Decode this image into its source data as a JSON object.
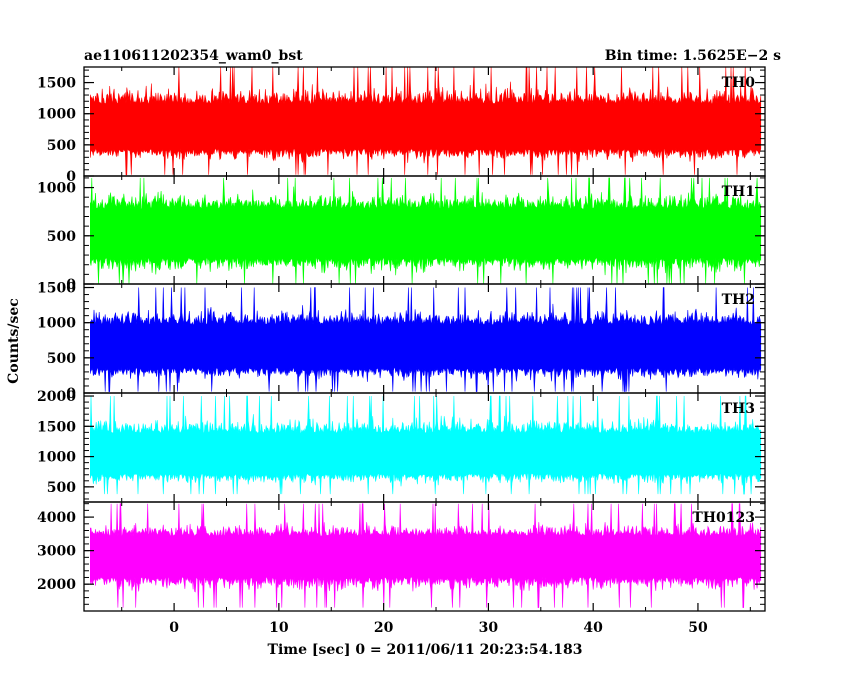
{
  "chart_data": {
    "type": "line",
    "title_left": "ae110611202354_wam0_bst",
    "title_right": "Bin time: 1.5625E−2 s",
    "xlabel": "Time [sec] 0 = 2011/06/11 20:23:54.183",
    "ylabel": "Counts/sec",
    "xlim": [
      -8.6,
      56.4
    ],
    "x_data_range": [
      -8.0,
      56.0
    ],
    "xticks": [
      0,
      10,
      20,
      30,
      40,
      50
    ],
    "xticklabels": [
      "0",
      "10",
      "20",
      "30",
      "40",
      "50"
    ],
    "grid": false,
    "panels": [
      {
        "name": "TH0",
        "color": "#ff0000",
        "ylim": [
          0,
          1750
        ],
        "yticks": [
          0,
          500,
          1000,
          1500
        ],
        "yticklabels": [
          "0",
          "500",
          "1000",
          "1500"
        ],
        "mean": 730,
        "low": 200,
        "high": 1500,
        "min": 20,
        "max": 1750
      },
      {
        "name": "TH1",
        "color": "#00ff00",
        "ylim": [
          0,
          1120
        ],
        "yticks": [
          0,
          500,
          1000
        ],
        "yticklabels": [
          "0",
          "500",
          "1000"
        ],
        "mean": 500,
        "low": 90,
        "high": 1000,
        "min": 0,
        "max": 1100
      },
      {
        "name": "TH2",
        "color": "#0000ff",
        "ylim": [
          0,
          1550
        ],
        "yticks": [
          0,
          500,
          1000,
          1500
        ],
        "yticklabels": [
          "0",
          "500",
          "1000",
          "1500"
        ],
        "mean": 620,
        "low": 150,
        "high": 1250,
        "min": 20,
        "max": 1500
      },
      {
        "name": "TH3",
        "color": "#00ffff",
        "ylim": [
          250,
          2050
        ],
        "yticks": [
          500,
          1000,
          1500,
          2000
        ],
        "yticklabels": [
          "500",
          "1000",
          "1500",
          "2000"
        ],
        "mean": 1000,
        "low": 500,
        "high": 1700,
        "min": 380,
        "max": 2000
      },
      {
        "name": "TH0123",
        "color": "#ff00ff",
        "ylim": [
          1200,
          4450
        ],
        "yticks": [
          2000,
          3000,
          4000
        ],
        "yticklabels": [
          "2000",
          "3000",
          "4000"
        ],
        "mean": 2850,
        "low": 1700,
        "high": 3900,
        "min": 1300,
        "max": 4400
      }
    ]
  }
}
